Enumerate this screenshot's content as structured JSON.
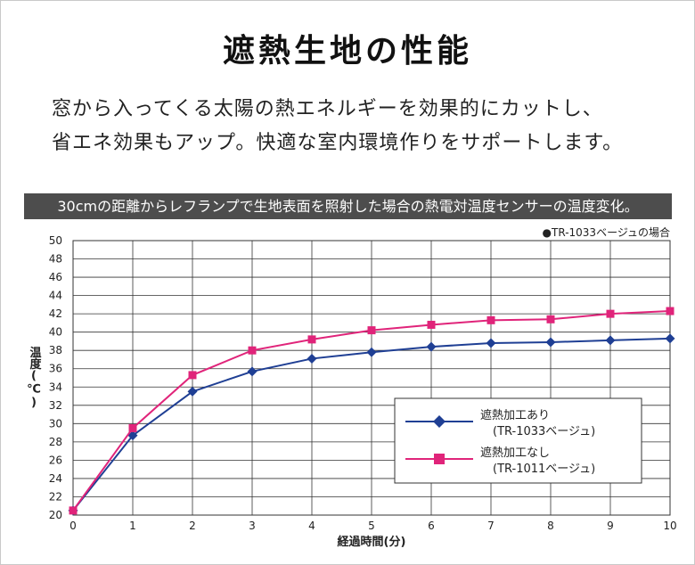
{
  "title": "遮熱生地の性能",
  "description": [
    "窓から入ってくる太陽の熱エネルギーを効果的にカットし、",
    "省エネ効果もアップ。快適な室内環境作りをサポートします。"
  ],
  "banner": "30cmの距離からレフランプで生地表面を照射した場合の熱電対温度センサーの温度変化。",
  "note": "●TR-1033ベージュの場合",
  "colors": {
    "series_1": "#1f3f94",
    "series_2": "#e0247a",
    "banner_bg": "#4d4d4d"
  },
  "chart_data": {
    "type": "line",
    "xlabel": "経過時間(分)",
    "ylabel": "温度(℃)",
    "x": [
      0,
      1,
      2,
      3,
      4,
      5,
      6,
      7,
      8,
      9,
      10
    ],
    "xlim": [
      0,
      10
    ],
    "ylim": [
      20,
      50
    ],
    "yticks": [
      20,
      22,
      24,
      26,
      28,
      30,
      32,
      34,
      36,
      38,
      40,
      42,
      44,
      46,
      48,
      50
    ],
    "xticks": [
      0,
      1,
      2,
      3,
      4,
      5,
      6,
      7,
      8,
      9,
      10
    ],
    "grid": true,
    "legend_position": "bottom-right",
    "series": [
      {
        "name": "遮熱加工あり",
        "name_sub": "(TR-1033ベージュ)",
        "marker": "diamond",
        "color": "#1f3f94",
        "values": [
          20.5,
          28.7,
          33.5,
          35.7,
          37.1,
          37.8,
          38.4,
          38.8,
          38.9,
          39.1,
          39.3
        ]
      },
      {
        "name": "遮熱加工なし",
        "name_sub": "(TR-1011ベージュ)",
        "marker": "square",
        "color": "#e0247a",
        "values": [
          20.5,
          29.5,
          35.3,
          38.0,
          39.2,
          40.2,
          40.8,
          41.3,
          41.4,
          42.0,
          42.3
        ]
      }
    ]
  }
}
